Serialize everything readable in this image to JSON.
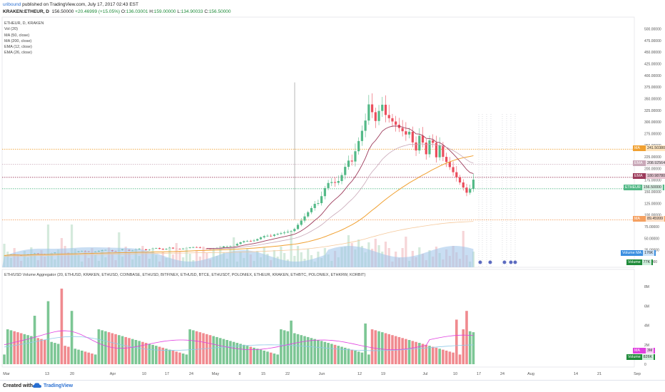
{
  "header": {
    "user": "uribound",
    "published_text": " published on TradingView.com, July 17, 2017 02:43 EST",
    "symbol": "KRAKEN:ETHEUR, D",
    "price": "156.50000",
    "change": "+20.46999 (+15.05%)",
    "open_label": "O:",
    "open": "136.03001",
    "high_label": "H:",
    "high": "159.00000",
    "low_label": "L:",
    "low": "134.90033",
    "close_label": "C:",
    "close": "156.50000"
  },
  "legend": {
    "line1": "ETHEUR, D, KRAKEN",
    "line2": "Vol (20)",
    "line3": "MA (50, close)",
    "line4": "MA (200, close)",
    "line5": "EMA (12, close)",
    "line6": "EMA (26, close)"
  },
  "indicator2_title": "ETH/USD Volume Aggregator (20, ETHUSD, KRAKEN, ETHUSD, COINBASE, ETHUSD, BITFINEX, ETHUSD, BTCE, ETHUSDT, POLONIEX, ETHEUR, KRAKEN, ETHBTC, POLONIEX, ETHKRW, KORBIT)",
  "price_axis": [
    "500.00000",
    "475.00000",
    "450.00000",
    "425.00000",
    "400.00000",
    "375.00000",
    "350.00000",
    "325.00000",
    "300.00000",
    "275.00000",
    "250.00000",
    "225.00000",
    "200.00000",
    "175.00000",
    "150.00000",
    "125.00000",
    "100.00000",
    "75.00000",
    "50.00000",
    "25.00000",
    "0.00000"
  ],
  "vol_axis": [
    "8M",
    "6M",
    "4M",
    "2M",
    "0"
  ],
  "x_axis": [
    "Mar",
    "13",
    "20",
    "Apr",
    "10",
    "17",
    "24",
    "May",
    "8",
    "15",
    "22",
    "Jun",
    "12",
    "19",
    "Jul",
    "10",
    "17",
    "24",
    "Aug",
    "14",
    "21",
    "Sep"
  ],
  "labels": {
    "ma1": {
      "name": "MA",
      "value": "241.50380"
    },
    "ema1": {
      "name": "EMA",
      "value": "208.92564"
    },
    "ema2": {
      "name": "EMA",
      "value": "180.98780"
    },
    "price": {
      "name": "ETHEUR",
      "value": "156.50000"
    },
    "ma2": {
      "name": "MA",
      "value": "89.45999"
    },
    "volma": {
      "name": "Volume MA",
      "value": "176K"
    },
    "vol": {
      "name": "Volume",
      "value": "77K"
    },
    "ind_ma": {
      "name": "MA",
      "value": "3M"
    },
    "ind_vol": {
      "name": "Volume",
      "value": "826K"
    }
  },
  "colors": {
    "up": "#53b987",
    "down": "#eb4d5c",
    "ma50": "#f0a030",
    "ma200": "#f5c89a",
    "ema12": "#9c3a5a",
    "ema26": "#c9a8b8",
    "volma_area": "#9cc3ea",
    "ind_ma": "#e040e0",
    "ind_ma2": "#8ec8e8"
  },
  "footer": {
    "created_with": "Created with",
    "brand": "TradingView"
  }
}
